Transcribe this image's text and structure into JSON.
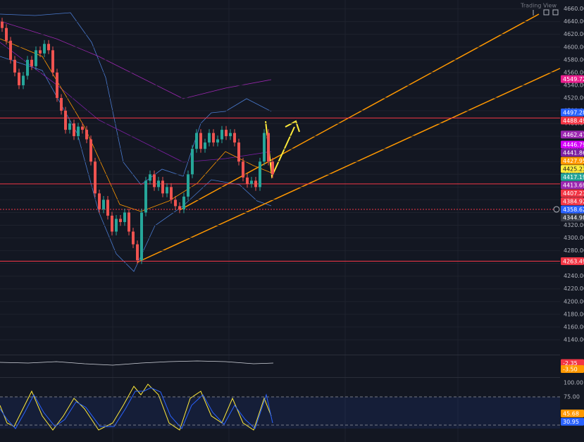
{
  "chart_data": [
    {
      "type": "candlestick",
      "open": [
        4640,
        4630,
        4610,
        4580,
        4560,
        4540,
        4555,
        4580,
        4570,
        4595,
        4590,
        4605,
        4595,
        4560,
        4520,
        4500,
        4470,
        4480,
        4460,
        4475,
        4470,
        4455,
        4420,
        4370,
        4345,
        4360,
        4335,
        4310,
        4330,
        4325,
        4340,
        4310,
        4290,
        4265,
        4340,
        4390,
        4400,
        4380,
        4390,
        4370,
        4380,
        4360,
        4350,
        4345,
        4365,
        4400,
        4440,
        4465,
        4440,
        4450,
        4465,
        4450,
        4455,
        4470,
        4460,
        4465,
        4450,
        4420,
        4395,
        4385,
        4390,
        4380,
        4420,
        4465,
        4420
      ],
      "high": [
        4646,
        4636,
        4616,
        4586,
        4566,
        4561,
        4586,
        4586,
        4601,
        4601,
        4611,
        4611,
        4601,
        4566,
        4526,
        4506,
        4486,
        4486,
        4481,
        4481,
        4476,
        4461,
        4426,
        4376,
        4366,
        4366,
        4341,
        4336,
        4336,
        4346,
        4346,
        4316,
        4296,
        4346,
        4396,
        4406,
        4406,
        4396,
        4396,
        4386,
        4386,
        4366,
        4356,
        4371,
        4406,
        4446,
        4471,
        4471,
        4456,
        4471,
        4471,
        4461,
        4476,
        4476,
        4471,
        4471,
        4456,
        4426,
        4401,
        4396,
        4396,
        4426,
        4471,
        4471,
        4426
      ],
      "low": [
        4624,
        4604,
        4574,
        4554,
        4534,
        4534,
        4549,
        4564,
        4564,
        4584,
        4584,
        4589,
        4554,
        4514,
        4494,
        4464,
        4464,
        4454,
        4454,
        4464,
        4449,
        4414,
        4364,
        4339,
        4339,
        4329,
        4304,
        4304,
        4319,
        4319,
        4304,
        4284,
        4259,
        4259,
        4334,
        4384,
        4374,
        4374,
        4364,
        4364,
        4354,
        4344,
        4339,
        4339,
        4359,
        4394,
        4434,
        4434,
        4434,
        4444,
        4444,
        4444,
        4449,
        4454,
        4454,
        4444,
        4414,
        4389,
        4379,
        4379,
        4374,
        4374,
        4414,
        4414,
        4394
      ],
      "close": [
        4630,
        4610,
        4580,
        4560,
        4540,
        4555,
        4580,
        4570,
        4595,
        4590,
        4605,
        4595,
        4560,
        4520,
        4500,
        4470,
        4480,
        4460,
        4475,
        4470,
        4455,
        4420,
        4370,
        4345,
        4360,
        4335,
        4310,
        4330,
        4325,
        4340,
        4310,
        4290,
        4265,
        4340,
        4390,
        4400,
        4380,
        4390,
        4370,
        4380,
        4360,
        4350,
        4345,
        4365,
        4400,
        4440,
        4465,
        4440,
        4450,
        4465,
        4450,
        4455,
        4470,
        4460,
        4465,
        4450,
        4420,
        4395,
        4385,
        4390,
        4380,
        4420,
        4465,
        4420,
        4400
      ],
      "up_color": "#26a69a",
      "down_color": "#ef5350",
      "ylim": [
        4120,
        4674
      ],
      "yticks": [
        {
          "value": 4140,
          "label": "4140.00"
        },
        {
          "value": 4160,
          "label": "4160.00"
        },
        {
          "value": 4180,
          "label": "4180.00"
        },
        {
          "value": 4200,
          "label": "4200.00"
        },
        {
          "value": 4220,
          "label": "4220.00"
        },
        {
          "value": 4240,
          "label": "4240.00"
        },
        {
          "value": 4260,
          "label": "4260.00"
        },
        {
          "value": 4280,
          "label": "4280.00"
        },
        {
          "value": 4300,
          "label": "4300.00"
        },
        {
          "value": 4320,
          "label": "4320.00"
        },
        {
          "value": 4340,
          "label": "4340.00"
        },
        {
          "value": 4360,
          "label": "4360.00"
        },
        {
          "value": 4380,
          "label": "4380.00"
        },
        {
          "value": 4400,
          "label": "4400.00"
        },
        {
          "value": 4420,
          "label": "4420.00"
        },
        {
          "value": 4440,
          "label": "4440.00"
        },
        {
          "value": 4460,
          "label": "4460.00"
        },
        {
          "value": 4480,
          "label": "4480.00"
        },
        {
          "value": 4500,
          "label": "4500.00"
        },
        {
          "value": 4520,
          "label": "4520.00"
        },
        {
          "value": 4540,
          "label": "4540.00"
        },
        {
          "value": 4560,
          "label": "4560.00"
        },
        {
          "value": 4580,
          "label": "4580.00"
        },
        {
          "value": 4600,
          "label": "4600.00"
        },
        {
          "value": 4620,
          "label": "4620.00"
        },
        {
          "value": 4640,
          "label": "4640.00"
        },
        {
          "value": 4660,
          "label": "4660.00"
        }
      ],
      "levels": [
        4488.49,
        4384.92,
        4263.49
      ],
      "level_color": "#f23645",
      "crosshair_tag": 13,
      "price_tags": [
        {
          "value": 4549.72,
          "color": "#e91e8c"
        },
        {
          "value": 4497.28,
          "color": "#2962ff"
        },
        {
          "value": 4488.49,
          "color": "#f23645"
        },
        {
          "value": 4462.47,
          "color": "#9c27b0"
        },
        {
          "value": 4446.79,
          "color": "#d500f9"
        },
        {
          "value": 4441.86,
          "color": "#7b1fa2"
        },
        {
          "value": 4427.95,
          "color": "#ff9800"
        },
        {
          "value": 4425.23,
          "color": "#ffeb3b"
        },
        {
          "value": 4417.19,
          "color": "#26a69a"
        },
        {
          "value": 4413.69,
          "color": "#9c27b0"
        },
        {
          "value": 4407.23,
          "color": "#f23645"
        },
        {
          "value": 4384.92,
          "color": "#f23645"
        },
        {
          "value": 4358.62,
          "color": "#2962ff"
        },
        {
          "value": 4344.98,
          "color": "#363a45"
        },
        {
          "value": 4263.49,
          "color": "#f23645"
        }
      ]
    },
    {
      "type": "oscillator",
      "price_tags": [
        {
          "value": -2.35,
          "color": "#f23645"
        },
        {
          "value": -3.5,
          "label": "-3.50",
          "color": "#ff9800"
        }
      ]
    },
    {
      "type": "oscillator",
      "ylim": [
        -5,
        107.5
      ],
      "yticks": [
        {
          "value": 100,
          "label": "100.00"
        },
        {
          "value": 75,
          "label": "75.00"
        }
      ],
      "bands": [
        75,
        25
      ],
      "price_tags": [
        {
          "value": 45.68,
          "color": "#ff9800"
        },
        {
          "value": 30.95,
          "color": "#2962ff"
        }
      ]
    }
  ]
}
